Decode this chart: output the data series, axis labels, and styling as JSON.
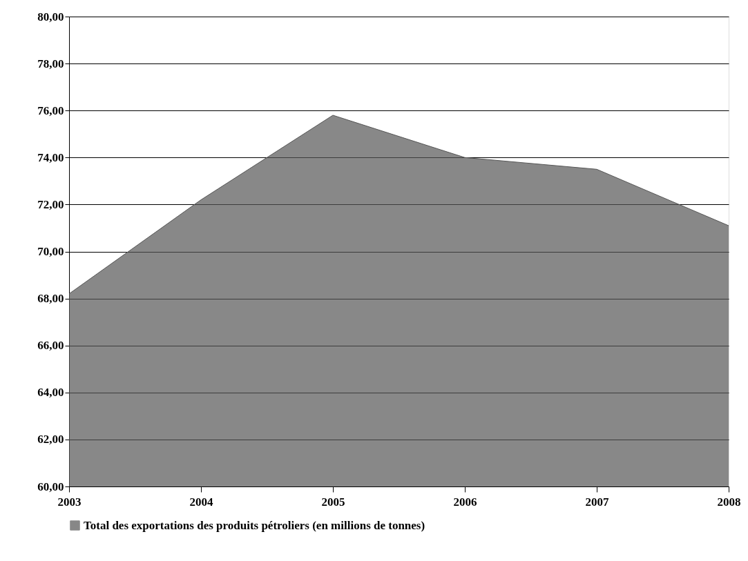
{
  "chart_data": {
    "type": "area",
    "x": [
      2003,
      2004,
      2005,
      2006,
      2007,
      2008
    ],
    "series": [
      {
        "name": "Total des exportations des produits pétroliers (en millions de tonnes)",
        "color": "#555555",
        "values": [
          68.2,
          72.2,
          75.8,
          74.0,
          73.5,
          71.1
        ]
      }
    ],
    "xlim": [
      2003,
      2008
    ],
    "xticks": [
      2003,
      2004,
      2005,
      2006,
      2007,
      2008
    ],
    "ylim": [
      60,
      80
    ],
    "yticks": [
      {
        "value": 60,
        "label": "60,00"
      },
      {
        "value": 62,
        "label": "62,00"
      },
      {
        "value": 64,
        "label": "64,00"
      },
      {
        "value": 66,
        "label": "66,00"
      },
      {
        "value": 68,
        "label": "68,00"
      },
      {
        "value": 70,
        "label": "70,00"
      },
      {
        "value": 72,
        "label": "72,00"
      },
      {
        "value": 74,
        "label": "74,00"
      },
      {
        "value": 76,
        "label": "76,00"
      },
      {
        "value": 78,
        "label": "78,00"
      },
      {
        "value": 80,
        "label": "80,00"
      }
    ],
    "grid": "y",
    "legend": "bottom"
  }
}
